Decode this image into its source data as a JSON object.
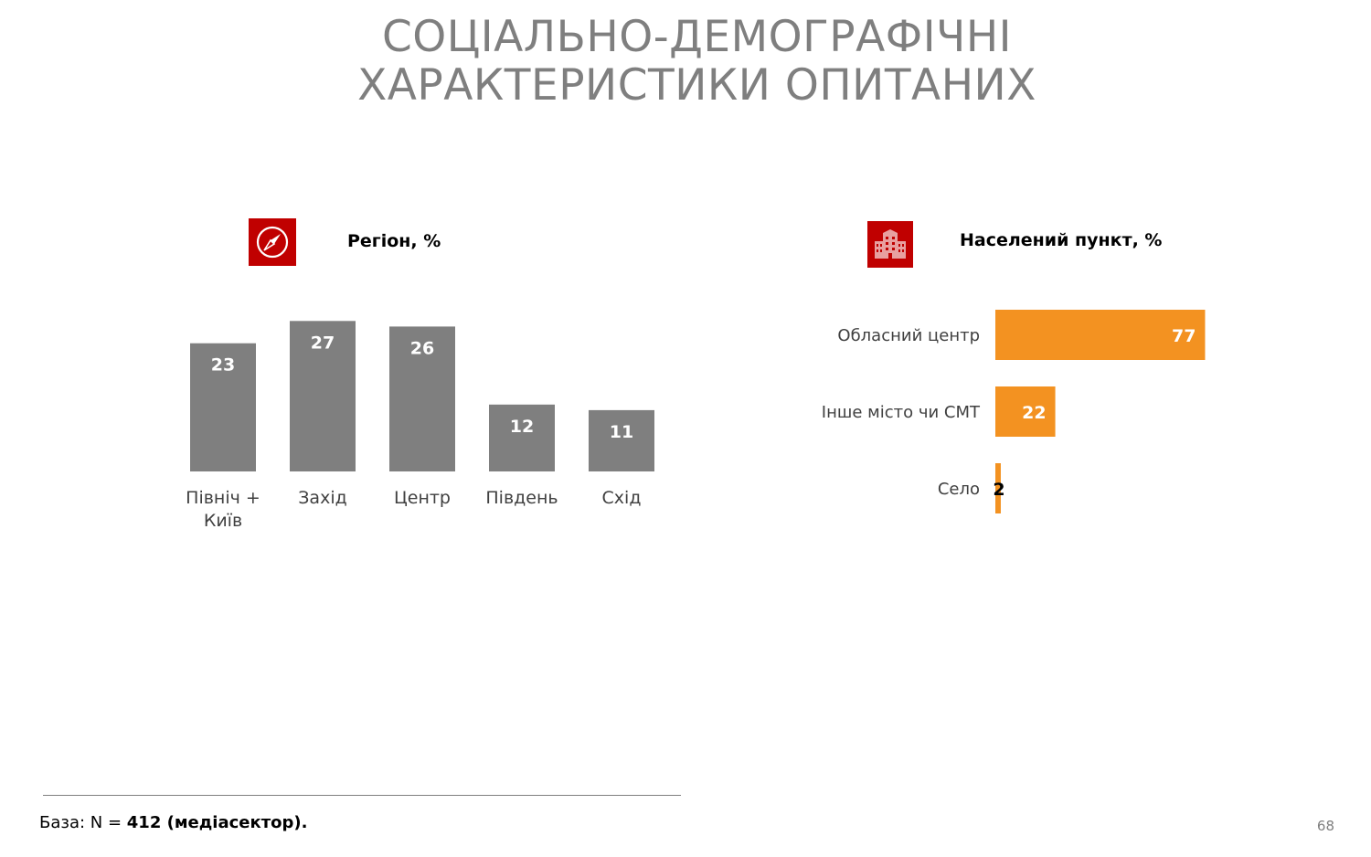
{
  "title": {
    "line1": "СОЦІАЛЬНО-ДЕМОГРАФІЧНІ",
    "line2": "ХАРАКТЕРИСТИКИ ОПИТАНИХ"
  },
  "colors": {
    "icon_bg": "#c00000",
    "region_bar": "#7f7f7f",
    "settlement_bar": "#f39221",
    "title": "#7f7f7f"
  },
  "region_panel": {
    "title": "Регіон, %",
    "icon": "compass-icon"
  },
  "settlement_panel": {
    "title": "Населений пункт, %",
    "icon": "buildings-icon"
  },
  "chart_data": [
    {
      "type": "bar",
      "orientation": "vertical",
      "title": "Регіон, %",
      "categories": [
        [
          "Північ +",
          "Київ"
        ],
        [
          "Захід"
        ],
        [
          "Центр"
        ],
        [
          "Південь"
        ],
        [
          "Схід"
        ]
      ],
      "values": [
        23,
        27,
        26,
        12,
        11
      ],
      "data_labels": true,
      "grid": false,
      "legend": "none"
    },
    {
      "type": "bar",
      "orientation": "horizontal",
      "title": "Населений пункт, %",
      "categories": [
        "Обласний центр",
        "Інше місто чи СМТ",
        "Село"
      ],
      "values": [
        77,
        22,
        2
      ],
      "data_labels": true,
      "grid": false,
      "legend": "none"
    }
  ],
  "footer": {
    "prefix": "База: N = ",
    "bold": "412 (медіасектор)."
  },
  "page_number": "68"
}
